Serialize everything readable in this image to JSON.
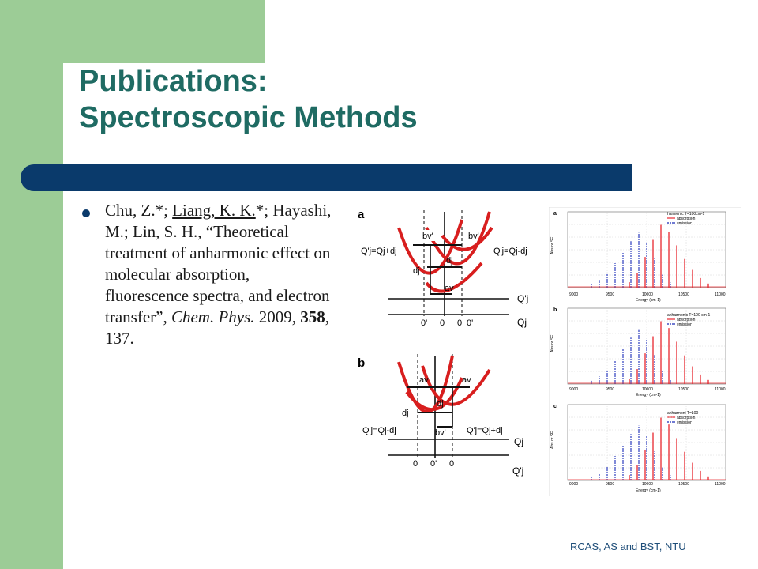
{
  "slide": {
    "title_line1": "Publications:",
    "title_line2": "Spectroscopic Methods",
    "footer": "RCAS, AS and BST, NTU"
  },
  "citation": {
    "authors_a": "Chu, Z.*; ",
    "author_underlined": "Liang, K. K.",
    "authors_b": "*; Hayashi, M.; Lin, S. H., “Theoretical treatment of anharmonic effect on molecular absorption, fluorescence spectra, and electron transfer”, ",
    "journal": "Chem. Phys.",
    "year_sep": " 2009, ",
    "volume": "358",
    "pages": ", 137."
  },
  "figure_left": {
    "panel_a": "a",
    "panel_b": "b",
    "a_left_eq": "Q'j=Qj+dj",
    "a_right_eq": "Q'j=Qj-dj",
    "a_bv1": "bv'",
    "a_bv2": "bv'",
    "a_dj1": "dj",
    "a_dj2": "dj",
    "a_av": "av",
    "a_axis_q1": "Q'j",
    "a_axis_q2": "Qj",
    "a_ticks": [
      "0'",
      "0",
      "0",
      "0'"
    ],
    "b_av1": "av",
    "b_av2": "av",
    "b_dj1": "dj",
    "b_dj2": "dj",
    "b_bv": "bv'",
    "b_left_eq": "Q'j=Qj-dj",
    "b_right_eq": "Q'j=Qj+dj",
    "b_axis_q1": "Qj",
    "b_axis_q2": "Q'j",
    "b_ticks": [
      "0",
      "0'",
      "0"
    ]
  },
  "figure_right": {
    "panels": [
      {
        "letter": "a",
        "legend_title": "harmonic T=100cm-1",
        "ylabel": "Abs or SE",
        "yticks": [
          "400",
          "350",
          "300",
          "250",
          "200",
          "150",
          "100",
          "50",
          "0"
        ]
      },
      {
        "letter": "b",
        "legend_title": "anharmonic T=100 cm-1",
        "ylabel": "Abs or SE",
        "yticks": [
          "350",
          "300",
          "250",
          "200",
          "150",
          "100",
          "50",
          "0"
        ]
      },
      {
        "letter": "c",
        "legend_title": "anharmoni T=100",
        "ylabel": "Abs or SE",
        "yticks": [
          "500",
          "450",
          "400",
          "350",
          "300",
          "250",
          "200",
          "150",
          "100",
          "50",
          "0"
        ]
      }
    ],
    "legend_absorption": "absorption",
    "legend_emission": "emission",
    "xticks": [
      "9000",
      "9500",
      "10000",
      "10500",
      "11000"
    ],
    "xlabel": "Energy (cm-1)",
    "absorption_color": "#e8262e",
    "emission_color": "#1a2bb8"
  },
  "colors": {
    "accent_green": "#9ccc96",
    "title_teal": "#1f6b63",
    "bar_navy": "#0a3a6b"
  }
}
